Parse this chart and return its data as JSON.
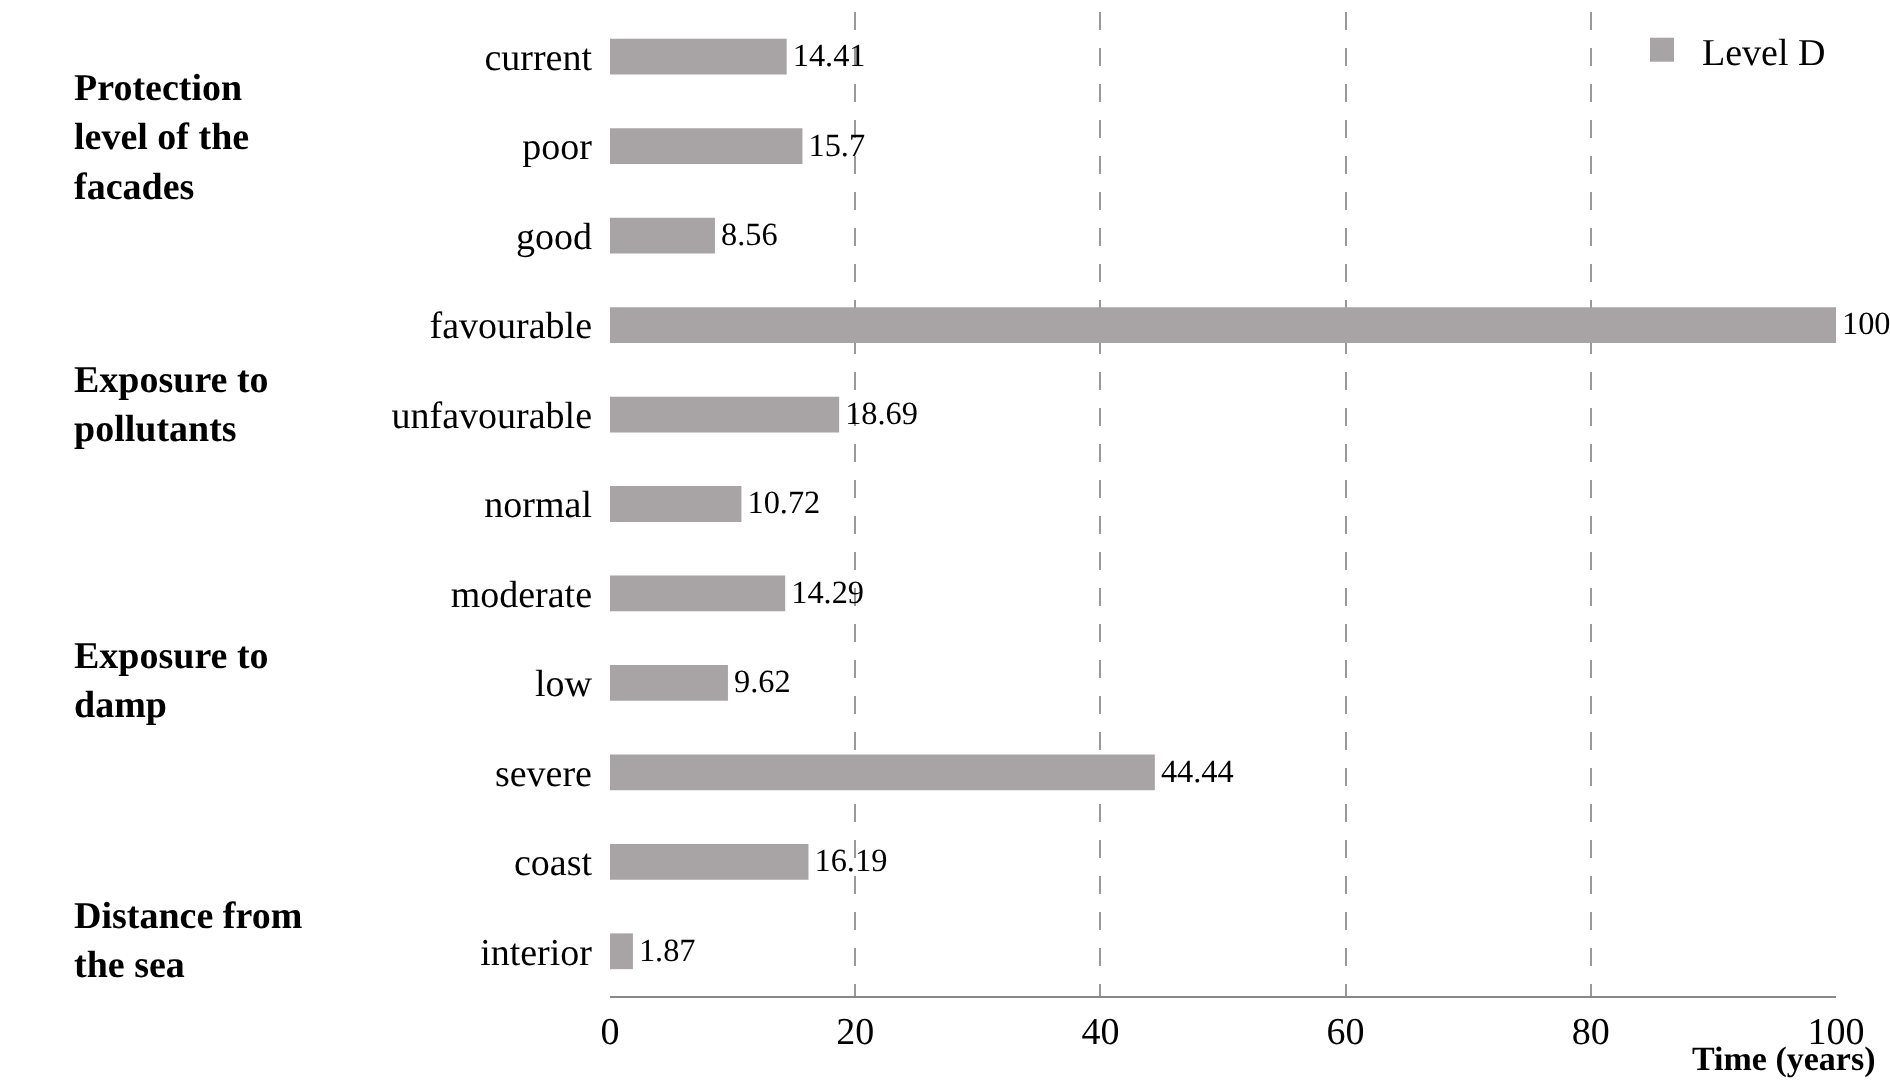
{
  "chart_data": {
    "type": "bar",
    "orientation": "horizontal",
    "categories": [
      "current",
      "poor",
      "good",
      "favourable",
      "unfavourable",
      "normal",
      "moderate",
      "low",
      "severe",
      "coast",
      "interior"
    ],
    "series": [
      {
        "name": "Level D",
        "color": "#a8a3a5",
        "values": [
          14.41,
          15.7,
          8.56,
          100,
          18.69,
          10.72,
          14.29,
          9.62,
          44.44,
          16.19,
          1.87
        ]
      }
    ],
    "data_labels": true,
    "xlabel": "Time (years)",
    "xlim": [
      0,
      100
    ],
    "xticks": [
      0,
      20,
      40,
      60,
      80,
      100
    ],
    "grid": "x",
    "legend": "top right",
    "annotations": [
      "Protection level of the facades",
      "Exposure to pollutants",
      "Exposure to damp",
      "Distance from the sea"
    ]
  }
}
